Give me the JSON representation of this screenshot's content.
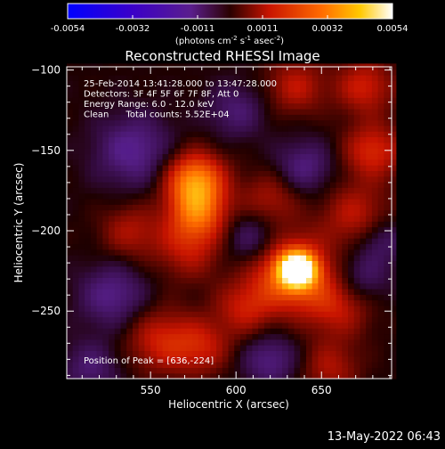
{
  "colorbar": {
    "ticks": [
      "-0.0054",
      "-0.0032",
      "-0.0011",
      "0.0011",
      "0.0032",
      "0.0054"
    ],
    "units_prefix": "(photons cm",
    "units_sup1": "-2",
    "units_mid": " s",
    "units_sup2": "-1",
    "units_mid2": " asec",
    "units_sup3": "-2",
    "units_suffix": ")"
  },
  "chart_data": {
    "type": "heatmap",
    "title": "Reconstructed RHESSI Image",
    "xlabel": "Heliocentric X (arcsec)",
    "ylabel": "Heliocentric Y (arcsec)",
    "xlim": [
      501,
      691
    ],
    "ylim": [
      -292,
      -98
    ],
    "x_ticks": [
      550,
      600,
      650
    ],
    "y_ticks": [
      -100,
      -150,
      -200,
      -250
    ],
    "x_tick_labels": [
      "550",
      "600",
      "650"
    ],
    "y_tick_labels": [
      "−100",
      "−150",
      "−200",
      "−250"
    ],
    "color_range": [
      -0.0054,
      0.0054
    ],
    "peak": {
      "x": 636,
      "y": -224
    },
    "annotations": [
      "25-Feb-2014 13:41:28.000 to 13:47:28.000",
      "Detectors: 3F 4F 5F 6F 7F 8F, Att 0",
      "Energy Range: 6.0 - 12.0 keV",
      "Clean      Total counts: 5.52E+04"
    ],
    "peak_label": "Position of Peak = [636,-224]",
    "blobs": [
      {
        "x": 636,
        "y": -224,
        "v": 0.0054,
        "s": 7
      },
      {
        "x": 632,
        "y": -226,
        "v": 0.003,
        "s": 16
      },
      {
        "x": 576,
        "y": -168,
        "v": 0.0032,
        "s": 12
      },
      {
        "x": 578,
        "y": -188,
        "v": 0.0024,
        "s": 12
      },
      {
        "x": 572,
        "y": -210,
        "v": 0.0014,
        "s": 14
      },
      {
        "x": 556,
        "y": -268,
        "v": 0.0016,
        "s": 14
      },
      {
        "x": 580,
        "y": -272,
        "v": 0.0014,
        "s": 12
      },
      {
        "x": 538,
        "y": -200,
        "v": 0.0012,
        "s": 12
      },
      {
        "x": 605,
        "y": -248,
        "v": 0.0014,
        "s": 12
      },
      {
        "x": 660,
        "y": -245,
        "v": 0.0016,
        "s": 14
      },
      {
        "x": 670,
        "y": -190,
        "v": 0.0014,
        "s": 14
      },
      {
        "x": 680,
        "y": -150,
        "v": 0.0018,
        "s": 12
      },
      {
        "x": 675,
        "y": -110,
        "v": 0.0016,
        "s": 12
      },
      {
        "x": 635,
        "y": -110,
        "v": 0.0014,
        "s": 12
      },
      {
        "x": 620,
        "y": -180,
        "v": 0.0012,
        "s": 12
      },
      {
        "x": 655,
        "y": -285,
        "v": 0.0012,
        "s": 12
      },
      {
        "x": 640,
        "y": -160,
        "v": -0.0012,
        "s": 12
      },
      {
        "x": 540,
        "y": -150,
        "v": -0.0014,
        "s": 16
      },
      {
        "x": 528,
        "y": -240,
        "v": -0.0013,
        "s": 14
      },
      {
        "x": 610,
        "y": -205,
        "v": -0.0012,
        "s": 12
      },
      {
        "x": 672,
        "y": -230,
        "v": -0.0012,
        "s": 12
      },
      {
        "x": 600,
        "y": -125,
        "v": -0.001,
        "s": 12
      },
      {
        "x": 620,
        "y": -280,
        "v": -0.0012,
        "s": 12
      },
      {
        "x": 515,
        "y": -285,
        "v": -0.001,
        "s": 12
      },
      {
        "x": 685,
        "y": -205,
        "v": -0.001,
        "s": 10
      }
    ]
  },
  "footer": {
    "timestamp": "13-May-2022 06:43"
  }
}
